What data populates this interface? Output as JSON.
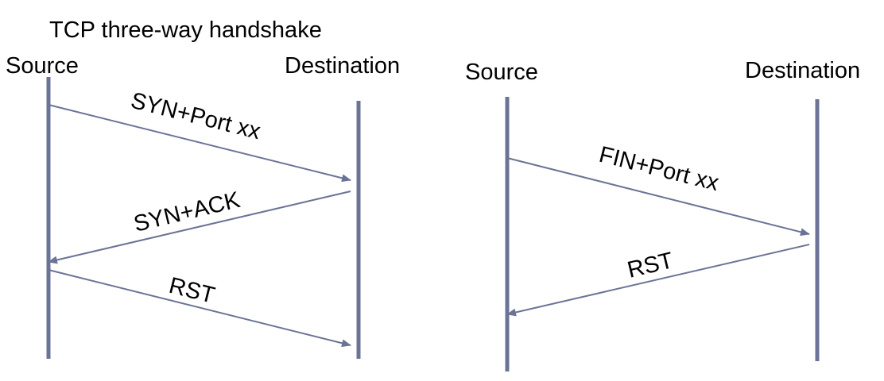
{
  "colors": {
    "line": "#6B7396",
    "text": "#000000",
    "background": "#ffffff"
  },
  "left_diagram": {
    "title": "TCP three-way handshake",
    "source_label": "Source",
    "destination_label": "Destination",
    "messages": [
      {
        "label": "SYN+Port xx",
        "direction": "to-destination"
      },
      {
        "label": "SYN+ACK",
        "direction": "to-source"
      },
      {
        "label": "RST",
        "direction": "to-destination"
      }
    ]
  },
  "right_diagram": {
    "source_label": "Source",
    "destination_label": "Destination",
    "messages": [
      {
        "label": "FIN+Port xx",
        "direction": "to-destination"
      },
      {
        "label": "RST",
        "direction": "to-source"
      }
    ]
  }
}
